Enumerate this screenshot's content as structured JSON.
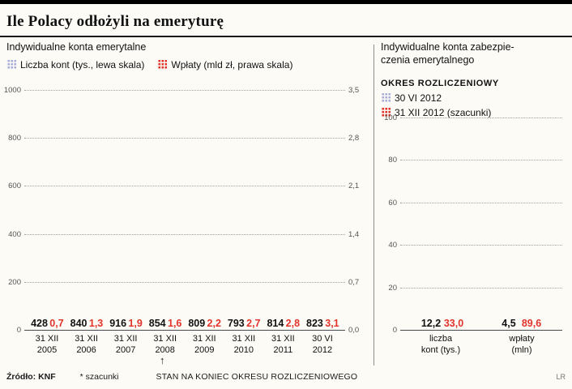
{
  "title": "Ile Polacy odłożyli na emeryturę",
  "footer": {
    "source": "Źródło: KNF",
    "note": "* szacunki",
    "caption": "STAN NA KONIEC OKRESU ROZLICZENIOWEGO",
    "credit": "LR"
  },
  "colors": {
    "blue": "#a8addc",
    "red": "#e2342a"
  },
  "chart_data": [
    {
      "type": "bar",
      "title": "Indywidualne konta emerytalne",
      "legend": [
        {
          "label": "Liczba kont (tys., lewa skala)",
          "color": "#a8addc"
        },
        {
          "label": "Wpłaty (mld zł, prawa skala)",
          "color": "#e2342a"
        }
      ],
      "categories": [
        [
          "31 XII",
          "2005"
        ],
        [
          "31 XII",
          "2006"
        ],
        [
          "31 XII",
          "2007"
        ],
        [
          "31 XII",
          "2008"
        ],
        [
          "31 XII",
          "2009"
        ],
        [
          "31 XII",
          "2010"
        ],
        [
          "31 XII",
          "2011"
        ],
        [
          "30 VI",
          "2012"
        ]
      ],
      "series": [
        {
          "name": "Liczba kont (tys., lewa skala)",
          "axis": "left",
          "color": "#a8addc",
          "values": [
            428,
            840,
            916,
            854,
            809,
            793,
            814,
            823
          ],
          "labels": [
            "428",
            "840",
            "916",
            "854",
            "809",
            "793",
            "814",
            "823"
          ]
        },
        {
          "name": "Wpłaty (mld zł, prawa skala)",
          "axis": "right",
          "color": "#e2342a",
          "values": [
            0.7,
            1.3,
            1.9,
            1.6,
            2.2,
            2.7,
            2.8,
            3.1
          ],
          "labels": [
            "0,7",
            "1,3",
            "1,9",
            "1,6",
            "2,2",
            "2,7",
            "2,8",
            "3,1"
          ]
        }
      ],
      "left_axis": {
        "min": 0,
        "max": 1000,
        "ticks": [
          0,
          200,
          400,
          600,
          800,
          1000
        ],
        "tick_labels": [
          "0",
          "200",
          "400",
          "600",
          "800",
          "1000"
        ]
      },
      "right_axis": {
        "min": 0,
        "max": 3.5,
        "ticks": [
          0,
          0.7,
          1.4,
          2.1,
          2.8,
          3.5
        ],
        "tick_labels": [
          "0,0",
          "0,7",
          "1,4",
          "2,1",
          "2,8",
          "3,5"
        ]
      },
      "grid": true
    },
    {
      "type": "bar",
      "title_lines": [
        "Indywidualne konta zabezpie-",
        "czenia emerytalnego"
      ],
      "legend_title": "OKRES ROZLICZENIOWY",
      "legend": [
        {
          "label": "30 VI 2012",
          "color": "#a8addc"
        },
        {
          "label": "31 XII 2012 (szacunki)",
          "color": "#e2342a"
        }
      ],
      "categories": [
        [
          "liczba",
          "kont (tys.)"
        ],
        [
          "wpłaty",
          "(mln)"
        ]
      ],
      "series": [
        {
          "name": "30 VI 2012",
          "color": "#a8addc",
          "values": [
            12.2,
            4.5
          ],
          "labels": [
            "12,2",
            "4,5"
          ]
        },
        {
          "name": "31 XII 2012 (szacunki)",
          "color": "#e2342a",
          "values": [
            33.0,
            89.6
          ],
          "labels": [
            "33,0",
            "89,6"
          ]
        }
      ],
      "axis": {
        "min": 0,
        "max": 100,
        "ticks": [
          0,
          20,
          40,
          60,
          80,
          100
        ],
        "tick_labels": [
          "0",
          "20",
          "40",
          "60",
          "80",
          "100"
        ]
      },
      "grid": true
    }
  ]
}
